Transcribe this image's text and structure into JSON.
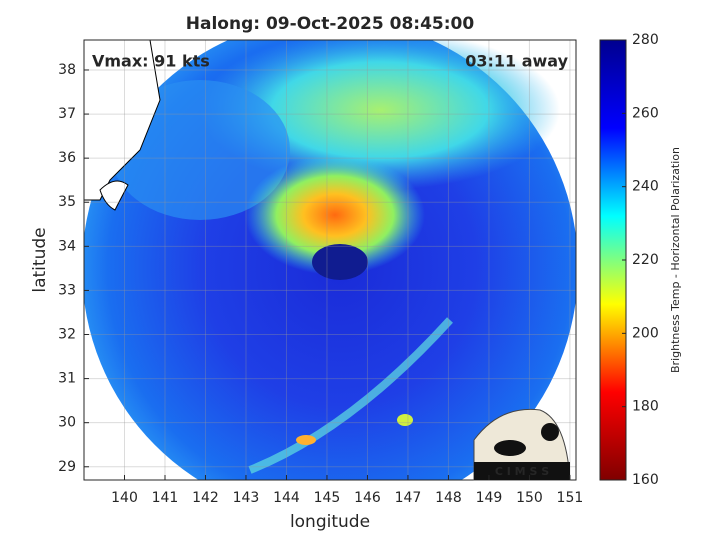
{
  "chart_data": {
    "type": "image",
    "title": "Halong: 09-Oct-2025 08:45:00",
    "x_label": "longitude",
    "y_label": "latitude",
    "xlim": [
      139,
      151.15
    ],
    "ylim": [
      28.7,
      38.68
    ],
    "xticks": [
      140,
      141,
      142,
      143,
      144,
      145,
      146,
      147,
      148,
      149,
      150,
      151
    ],
    "yticks": [
      29,
      30,
      31,
      32,
      33,
      34,
      35,
      36,
      37,
      38
    ],
    "grid": true,
    "annotations": [
      "Vmax: 91 kts",
      "03:11 away"
    ],
    "colorbar": {
      "label": "Brightness Temp - Horizontal Polarization",
      "colormap": "jet",
      "clim": [
        160,
        280
      ],
      "ticks": [
        160,
        180,
        200,
        220,
        240,
        260,
        280
      ]
    },
    "logo_text": "C I M S S"
  }
}
